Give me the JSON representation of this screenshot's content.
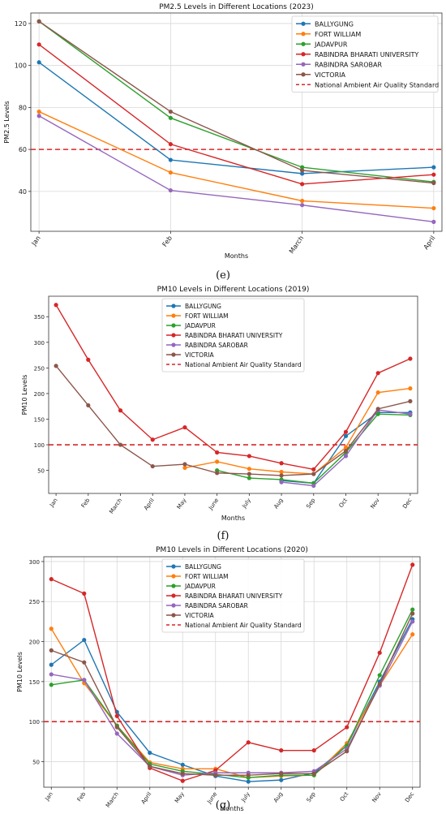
{
  "panels": [
    "(e)",
    "(f)",
    "(g)"
  ],
  "chart_data": [
    {
      "type": "line",
      "title": "PM2.5 Levels in Different Locations (2023)",
      "xlabel": "Months",
      "ylabel": "PM2.5 Levels",
      "categories": [
        "Jan",
        "Feb",
        "March",
        "April"
      ],
      "ylim": [
        21,
        125
      ],
      "yticks": [
        40,
        60,
        80,
        100,
        120
      ],
      "grid": true,
      "legend_position": "top-right",
      "reference_line": {
        "name": "National Ambient Air Quality Standard",
        "value": 60,
        "color": "#d62728"
      },
      "series": [
        {
          "name": "BALLYGUNG",
          "color": "#1f77b4",
          "values": [
            101.5,
            55,
            48.5,
            51.5
          ]
        },
        {
          "name": "FORT WILLIAM",
          "color": "#ff7f0e",
          "values": [
            78,
            49,
            35.5,
            32
          ]
        },
        {
          "name": "JADAVPUR",
          "color": "#2ca02c",
          "values": [
            121,
            75,
            51.5,
            44.5
          ]
        },
        {
          "name": "RABINDRA BHARATI UNIVERSITY",
          "color": "#d62728",
          "values": [
            110,
            62.5,
            43.5,
            48
          ]
        },
        {
          "name": "RABINDRA SAROBAR",
          "color": "#9467bd",
          "values": [
            76,
            40.5,
            33.5,
            25.5
          ]
        },
        {
          "name": "VICTORIA",
          "color": "#8c564b",
          "values": [
            121,
            78,
            50,
            44
          ]
        }
      ]
    },
    {
      "type": "line",
      "title": "PM10 Levels in Different Locations (2019)",
      "xlabel": "Months",
      "ylabel": "PM10 Levels",
      "categories": [
        "Jan",
        "Feb",
        "March",
        "April",
        "May",
        "June",
        "July",
        "Aug",
        "Sep",
        "Oct",
        "Nov",
        "Dec"
      ],
      "ylim": [
        5,
        390
      ],
      "yticks": [
        50,
        100,
        150,
        200,
        250,
        300,
        350
      ],
      "grid": false,
      "legend_position": "top-center",
      "reference_line": {
        "name": "National Ambient Air Quality Standard",
        "value": 100,
        "color": "#d62728"
      },
      "series": [
        {
          "name": "BALLYGUNG",
          "color": "#1f77b4",
          "values": [
            null,
            null,
            null,
            null,
            null,
            null,
            null,
            30,
            25,
            117,
            163,
            163
          ]
        },
        {
          "name": "FORT WILLIAM",
          "color": "#ff7f0e",
          "values": [
            null,
            null,
            null,
            null,
            55,
            67,
            53,
            47,
            43,
            95,
            202,
            210
          ]
        },
        {
          "name": "JADAVPUR",
          "color": "#2ca02c",
          "values": [
            null,
            null,
            null,
            null,
            null,
            50,
            35,
            32,
            25,
            85,
            160,
            158
          ]
        },
        {
          "name": "RABINDRA BHARATI UNIVERSITY",
          "color": "#d62728",
          "values": [
            373,
            266,
            167,
            110,
            134,
            85,
            78,
            64,
            52,
            125,
            240,
            268
          ]
        },
        {
          "name": "RABINDRA SAROBAR",
          "color": "#9467bd",
          "values": [
            null,
            null,
            null,
            null,
            null,
            null,
            null,
            27,
            20,
            78,
            168,
            160
          ]
        },
        {
          "name": "VICTORIA",
          "color": "#8c564b",
          "values": [
            254,
            177,
            100,
            58,
            62,
            45,
            43,
            40,
            43,
            88,
            170,
            185
          ]
        }
      ]
    },
    {
      "type": "line",
      "title": "PM10 Levels in Different Locations (2020)",
      "xlabel": "Months",
      "ylabel": "PM10 Levels",
      "categories": [
        "Jan",
        "Feb",
        "March",
        "April",
        "May",
        "June",
        "July",
        "Aug",
        "Sep",
        "Oct",
        "Nov",
        "Dec"
      ],
      "ylim": [
        18,
        306
      ],
      "yticks": [
        50,
        100,
        150,
        200,
        250,
        300
      ],
      "grid": true,
      "legend_position": "top-center",
      "reference_line": {
        "name": "National Ambient Air Quality Standard",
        "value": 100,
        "color": "#d62728"
      },
      "series": [
        {
          "name": "BALLYGUNG",
          "color": "#1f77b4",
          "values": [
            171,
            202,
            112,
            61,
            46,
            32,
            25,
            27,
            36,
            70,
            150,
            228
          ]
        },
        {
          "name": "FORT WILLIAM",
          "color": "#ff7f0e",
          "values": [
            216,
            148,
            95,
            49,
            41,
            41,
            30,
            32,
            33,
            73,
            145,
            209
          ]
        },
        {
          "name": "JADAVPUR",
          "color": "#2ca02c",
          "values": [
            146,
            152,
            95,
            47,
            38,
            34,
            30,
            33,
            33,
            70,
            158,
            240
          ]
        },
        {
          "name": "RABINDRA BHARATI UNIVERSITY",
          "color": "#d62728",
          "values": [
            278,
            260,
            107,
            42,
            26,
            39,
            74,
            64,
            64,
            93,
            186,
            296
          ]
        },
        {
          "name": "RABINDRA SAROBAR",
          "color": "#9467bd",
          "values": [
            159,
            152,
            85,
            44,
            33,
            36,
            36,
            36,
            38,
            66,
            145,
            225
          ]
        },
        {
          "name": "VICTORIA",
          "color": "#8c564b",
          "values": [
            189,
            174,
            93,
            44,
            35,
            33,
            33,
            35,
            35,
            63,
            147,
            235
          ]
        }
      ]
    }
  ]
}
